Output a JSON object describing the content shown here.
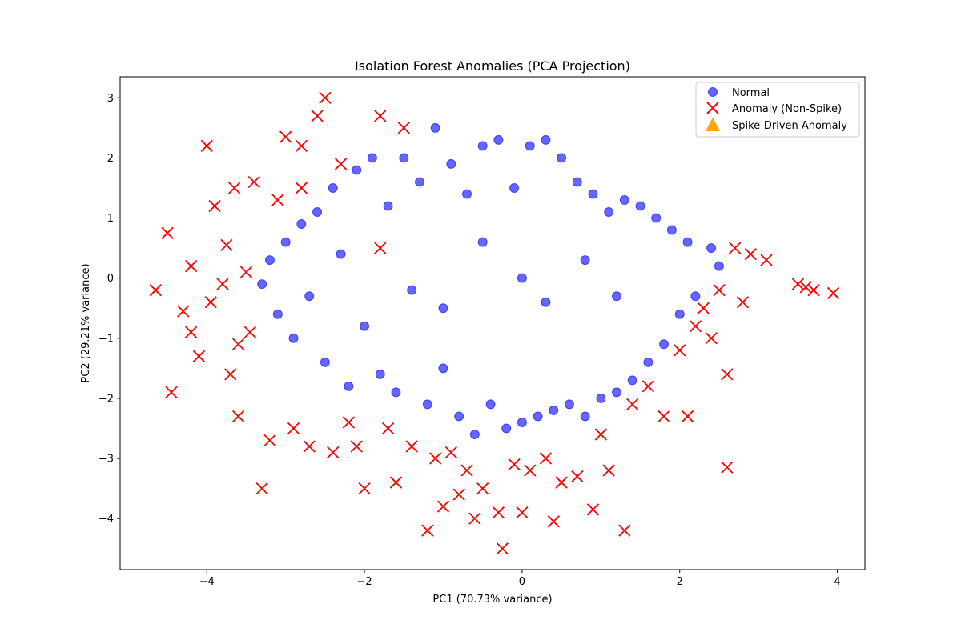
{
  "chart_data": {
    "type": "scatter",
    "title": "Isolation Forest Anomalies (PCA Projection)",
    "xlabel": "PC1 (70.73% variance)",
    "ylabel": "PC2 (29.21% variance)",
    "xlim": [
      -5.1,
      4.35
    ],
    "ylim": [
      -4.85,
      3.35
    ],
    "xticks": [
      -4,
      -2,
      0,
      2,
      4
    ],
    "xtick_labels": [
      "−4",
      "−2",
      "0",
      "2",
      "4"
    ],
    "yticks": [
      -4,
      -3,
      -2,
      -1,
      0,
      1,
      2,
      3
    ],
    "ytick_labels": [
      "−4",
      "−3",
      "−2",
      "−1",
      "0",
      "1",
      "2",
      "3"
    ],
    "grid": false,
    "legend_position": "top-right",
    "legend": [
      "Normal",
      "Anomaly (Non-Spike)",
      "Spike-Driven Anomaly"
    ],
    "series": [
      {
        "name": "Normal",
        "marker": "circle",
        "color": "#0000ff",
        "points": [
          [
            -3.3,
            -0.1
          ],
          [
            -3.2,
            0.3
          ],
          [
            -3.1,
            -0.6
          ],
          [
            -3.0,
            0.6
          ],
          [
            -2.9,
            -1.0
          ],
          [
            -2.8,
            0.9
          ],
          [
            -2.7,
            -0.3
          ],
          [
            -2.6,
            1.1
          ],
          [
            -2.5,
            -1.4
          ],
          [
            -2.4,
            1.5
          ],
          [
            -2.3,
            0.4
          ],
          [
            -2.2,
            -1.8
          ],
          [
            -2.1,
            1.8
          ],
          [
            -2.0,
            -0.8
          ],
          [
            -1.9,
            2.0
          ],
          [
            -1.8,
            -1.6
          ],
          [
            -1.7,
            1.2
          ],
          [
            -1.6,
            -1.9
          ],
          [
            -1.5,
            2.0
          ],
          [
            -1.4,
            -0.2
          ],
          [
            -1.3,
            1.6
          ],
          [
            -1.2,
            -2.1
          ],
          [
            -1.1,
            2.5
          ],
          [
            -1.0,
            -1.5
          ],
          [
            -0.9,
            1.9
          ],
          [
            -0.8,
            -2.3
          ],
          [
            -0.7,
            1.4
          ],
          [
            -0.6,
            -2.6
          ],
          [
            -0.5,
            2.2
          ],
          [
            -0.4,
            -2.1
          ],
          [
            -0.3,
            2.3
          ],
          [
            -0.2,
            -2.5
          ],
          [
            -0.1,
            1.5
          ],
          [
            0.0,
            -2.4
          ],
          [
            0.1,
            2.2
          ],
          [
            0.2,
            -2.3
          ],
          [
            0.3,
            2.3
          ],
          [
            0.4,
            -2.2
          ],
          [
            0.5,
            2.0
          ],
          [
            0.6,
            -2.1
          ],
          [
            0.7,
            1.6
          ],
          [
            0.8,
            -2.3
          ],
          [
            0.9,
            1.4
          ],
          [
            1.0,
            -2.0
          ],
          [
            1.1,
            1.1
          ],
          [
            1.2,
            -1.9
          ],
          [
            1.3,
            1.3
          ],
          [
            1.4,
            -1.7
          ],
          [
            1.5,
            1.2
          ],
          [
            1.6,
            -1.4
          ],
          [
            1.7,
            1.0
          ],
          [
            1.8,
            -1.1
          ],
          [
            1.9,
            0.8
          ],
          [
            2.0,
            -0.6
          ],
          [
            2.1,
            0.6
          ],
          [
            2.2,
            -0.3
          ],
          [
            2.4,
            0.5
          ],
          [
            2.5,
            0.2
          ],
          [
            0.0,
            0.0
          ],
          [
            0.3,
            -0.4
          ],
          [
            -0.5,
            0.6
          ],
          [
            0.8,
            0.3
          ],
          [
            -1.0,
            -0.5
          ],
          [
            1.2,
            -0.3
          ]
        ]
      },
      {
        "name": "Anomaly (Non-Spike)",
        "marker": "x",
        "color": "#ff0000",
        "points": [
          [
            -4.65,
            -0.2
          ],
          [
            -4.5,
            0.75
          ],
          [
            -4.45,
            -1.9
          ],
          [
            -4.3,
            -0.55
          ],
          [
            -4.2,
            0.2
          ],
          [
            -4.1,
            -1.3
          ],
          [
            -4.0,
            2.2
          ],
          [
            -3.95,
            -0.4
          ],
          [
            -3.9,
            1.2
          ],
          [
            -3.8,
            -0.1
          ],
          [
            -3.75,
            0.55
          ],
          [
            -3.7,
            -1.6
          ],
          [
            -3.65,
            1.5
          ],
          [
            -3.6,
            -2.3
          ],
          [
            -3.5,
            0.1
          ],
          [
            -3.45,
            -0.9
          ],
          [
            -3.4,
            1.6
          ],
          [
            -3.3,
            -3.5
          ],
          [
            -3.2,
            -2.7
          ],
          [
            -3.1,
            1.3
          ],
          [
            -3.0,
            2.35
          ],
          [
            -2.9,
            -2.5
          ],
          [
            -2.8,
            2.2
          ],
          [
            -2.7,
            -2.8
          ],
          [
            -2.6,
            2.7
          ],
          [
            -2.5,
            3.0
          ],
          [
            -2.4,
            -2.9
          ],
          [
            -2.3,
            1.9
          ],
          [
            -2.2,
            -2.4
          ],
          [
            -2.1,
            -2.8
          ],
          [
            -2.0,
            -3.5
          ],
          [
            -1.8,
            2.7
          ],
          [
            -1.7,
            -2.5
          ],
          [
            -1.6,
            -3.4
          ],
          [
            -1.5,
            2.5
          ],
          [
            -1.4,
            -2.8
          ],
          [
            -1.2,
            -4.2
          ],
          [
            -1.1,
            -3.0
          ],
          [
            -1.0,
            -3.8
          ],
          [
            -0.9,
            -2.9
          ],
          [
            -0.8,
            -3.6
          ],
          [
            -0.7,
            -3.2
          ],
          [
            -0.6,
            -4.0
          ],
          [
            -0.5,
            -3.5
          ],
          [
            -0.3,
            -3.9
          ],
          [
            -0.25,
            -4.5
          ],
          [
            -0.1,
            -3.1
          ],
          [
            0.0,
            -3.9
          ],
          [
            0.1,
            -3.2
          ],
          [
            0.3,
            -3.0
          ],
          [
            0.4,
            -4.05
          ],
          [
            0.5,
            -3.4
          ],
          [
            0.7,
            -3.3
          ],
          [
            0.9,
            -3.85
          ],
          [
            1.0,
            -2.6
          ],
          [
            1.1,
            -3.2
          ],
          [
            1.3,
            -4.2
          ],
          [
            1.4,
            -2.1
          ],
          [
            1.6,
            -1.8
          ],
          [
            1.8,
            -2.3
          ],
          [
            2.0,
            -1.2
          ],
          [
            2.1,
            -2.3
          ],
          [
            2.2,
            -0.8
          ],
          [
            2.3,
            -0.5
          ],
          [
            2.4,
            -1.0
          ],
          [
            2.5,
            -0.2
          ],
          [
            2.6,
            -1.6
          ],
          [
            2.6,
            -3.15
          ],
          [
            2.7,
            0.5
          ],
          [
            2.8,
            -0.4
          ],
          [
            2.9,
            0.4
          ],
          [
            3.1,
            0.3
          ],
          [
            3.5,
            -0.1
          ],
          [
            3.6,
            -0.15
          ],
          [
            3.7,
            -0.2
          ],
          [
            3.95,
            -0.25
          ],
          [
            -1.8,
            0.5
          ],
          [
            -2.8,
            1.5
          ],
          [
            -3.6,
            -1.1
          ],
          [
            -4.2,
            -0.9
          ]
        ]
      },
      {
        "name": "Spike-Driven Anomaly",
        "marker": "triangle",
        "color": "#ffa500",
        "points": []
      }
    ]
  }
}
